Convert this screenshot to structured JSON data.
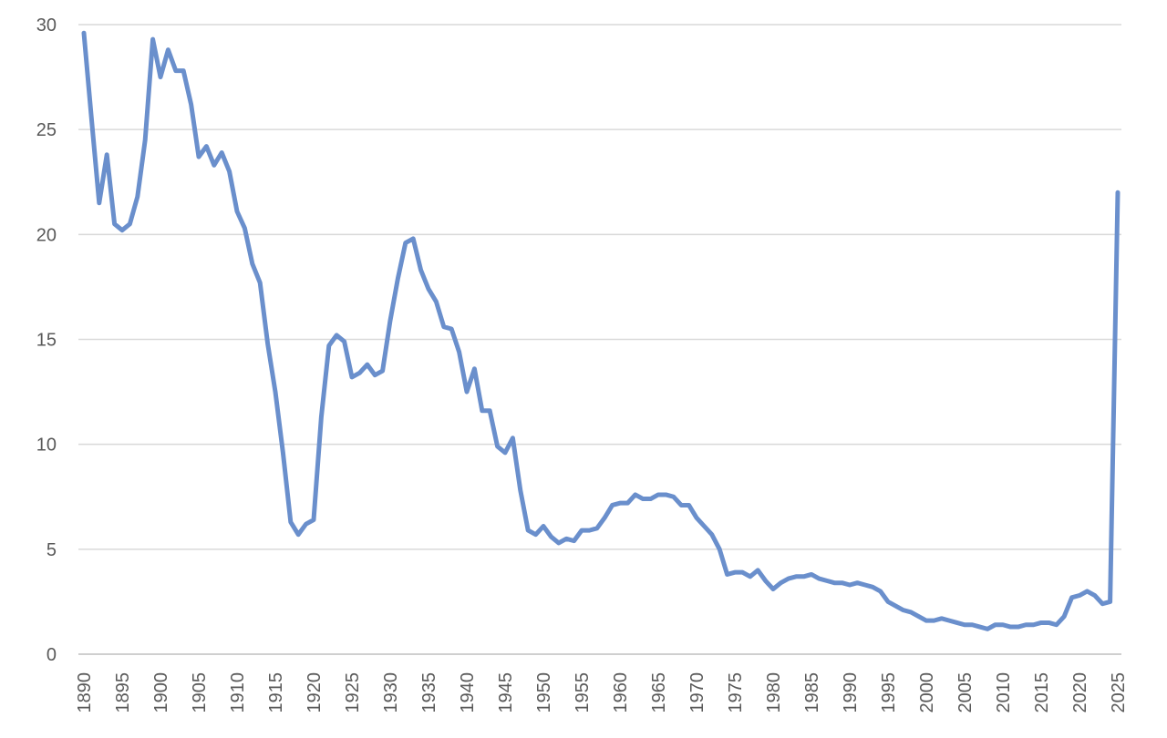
{
  "chart_data": {
    "type": "line",
    "title": "",
    "xlabel": "",
    "ylabel": "",
    "xlim": [
      1890,
      2025
    ],
    "ylim": [
      0,
      30
    ],
    "y_ticks": [
      0,
      5,
      10,
      15,
      20,
      25,
      30
    ],
    "x_ticks": [
      1890,
      1895,
      1900,
      1905,
      1910,
      1915,
      1920,
      1925,
      1930,
      1935,
      1940,
      1945,
      1950,
      1955,
      1960,
      1965,
      1970,
      1975,
      1980,
      1985,
      1990,
      1995,
      2000,
      2005,
      2010,
      2015,
      2020,
      2025
    ],
    "grid": true,
    "legend": "none",
    "series": [
      {
        "color": "#6a8fcc",
        "x": [
          1890,
          1891,
          1892,
          1893,
          1894,
          1895,
          1896,
          1897,
          1898,
          1899,
          1900,
          1901,
          1902,
          1903,
          1904,
          1905,
          1906,
          1907,
          1908,
          1909,
          1910,
          1911,
          1912,
          1913,
          1914,
          1915,
          1916,
          1917,
          1918,
          1919,
          1920,
          1921,
          1922,
          1923,
          1924,
          1925,
          1926,
          1927,
          1928,
          1929,
          1930,
          1931,
          1932,
          1933,
          1934,
          1935,
          1936,
          1937,
          1938,
          1939,
          1940,
          1941,
          1942,
          1943,
          1944,
          1945,
          1946,
          1947,
          1948,
          1949,
          1950,
          1951,
          1952,
          1953,
          1954,
          1955,
          1956,
          1957,
          1958,
          1959,
          1960,
          1961,
          1962,
          1963,
          1964,
          1965,
          1966,
          1967,
          1968,
          1969,
          1970,
          1971,
          1972,
          1973,
          1974,
          1975,
          1976,
          1977,
          1978,
          1979,
          1980,
          1981,
          1982,
          1983,
          1984,
          1985,
          1986,
          1987,
          1988,
          1989,
          1990,
          1991,
          1992,
          1993,
          1994,
          1995,
          1996,
          1997,
          1998,
          1999,
          2000,
          2001,
          2002,
          2003,
          2004,
          2005,
          2006,
          2007,
          2008,
          2009,
          2010,
          2011,
          2012,
          2013,
          2014,
          2015,
          2016,
          2017,
          2018,
          2019,
          2020,
          2021,
          2022,
          2023,
          2024,
          2025
        ],
        "y": [
          29.6,
          25.5,
          21.5,
          23.8,
          20.5,
          20.2,
          20.5,
          21.8,
          24.5,
          29.3,
          27.5,
          28.8,
          27.8,
          27.8,
          26.2,
          23.7,
          24.2,
          23.3,
          23.9,
          23.0,
          21.1,
          20.3,
          18.6,
          17.7,
          14.8,
          12.5,
          9.6,
          6.3,
          5.7,
          6.2,
          6.4,
          11.3,
          14.7,
          15.2,
          14.9,
          13.2,
          13.4,
          13.8,
          13.3,
          13.5,
          15.9,
          17.9,
          19.6,
          19.8,
          18.3,
          17.4,
          16.8,
          15.6,
          15.5,
          14.4,
          12.5,
          13.6,
          11.6,
          11.6,
          9.9,
          9.6,
          10.3,
          7.8,
          5.9,
          5.7,
          6.1,
          5.6,
          5.3,
          5.5,
          5.4,
          5.9,
          5.9,
          6.0,
          6.5,
          7.1,
          7.2,
          7.2,
          7.6,
          7.4,
          7.4,
          7.6,
          7.6,
          7.5,
          7.1,
          7.1,
          6.5,
          6.1,
          5.7,
          5.0,
          3.8,
          3.9,
          3.9,
          3.7,
          4.0,
          3.5,
          3.1,
          3.4,
          3.6,
          3.7,
          3.7,
          3.8,
          3.6,
          3.5,
          3.4,
          3.4,
          3.3,
          3.4,
          3.3,
          3.2,
          3.0,
          2.5,
          2.3,
          2.1,
          2.0,
          1.8,
          1.6,
          1.6,
          1.7,
          1.6,
          1.5,
          1.4,
          1.4,
          1.3,
          1.2,
          1.4,
          1.4,
          1.3,
          1.3,
          1.4,
          1.4,
          1.5,
          1.5,
          1.4,
          1.8,
          2.7,
          2.8,
          3.0,
          2.8,
          2.4,
          2.5,
          22.0
        ]
      }
    ]
  }
}
